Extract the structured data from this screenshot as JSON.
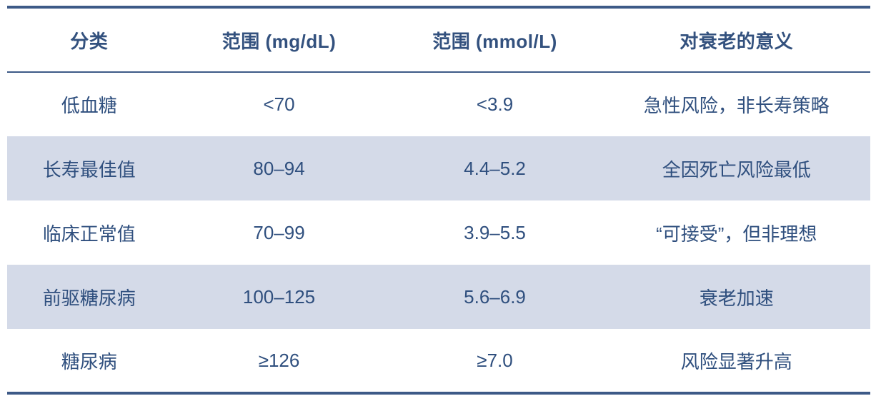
{
  "chart_data": {
    "type": "table",
    "columns": [
      "分类",
      "范围 (mg/dL)",
      "范围 (mmol/L)",
      "对衰老的意义"
    ],
    "rows": [
      [
        "低血糖",
        "<70",
        "<3.9",
        "急性风险，非长寿策略"
      ],
      [
        "长寿最佳值",
        "80–94",
        "4.4–5.2",
        "全因死亡风险最低"
      ],
      [
        "临床正常值",
        "70–99",
        "3.9–5.5",
        "“可接受”，但非理想"
      ],
      [
        "前驱糖尿病",
        "100–125",
        "5.6–6.9",
        "衰老加速"
      ],
      [
        "糖尿病",
        "≥126",
        "≥7.0",
        "风险显著升高"
      ]
    ],
    "striped_row_indexes": [
      1,
      3
    ],
    "layout": {
      "grid": "horizontal rules only",
      "header_position": "top"
    }
  },
  "colors": {
    "border": "#3D5A87",
    "header_text": "#33517E",
    "body_text": "#2F4F7E",
    "stripe": "#D4DAE8",
    "background": "#FFFFFF"
  }
}
